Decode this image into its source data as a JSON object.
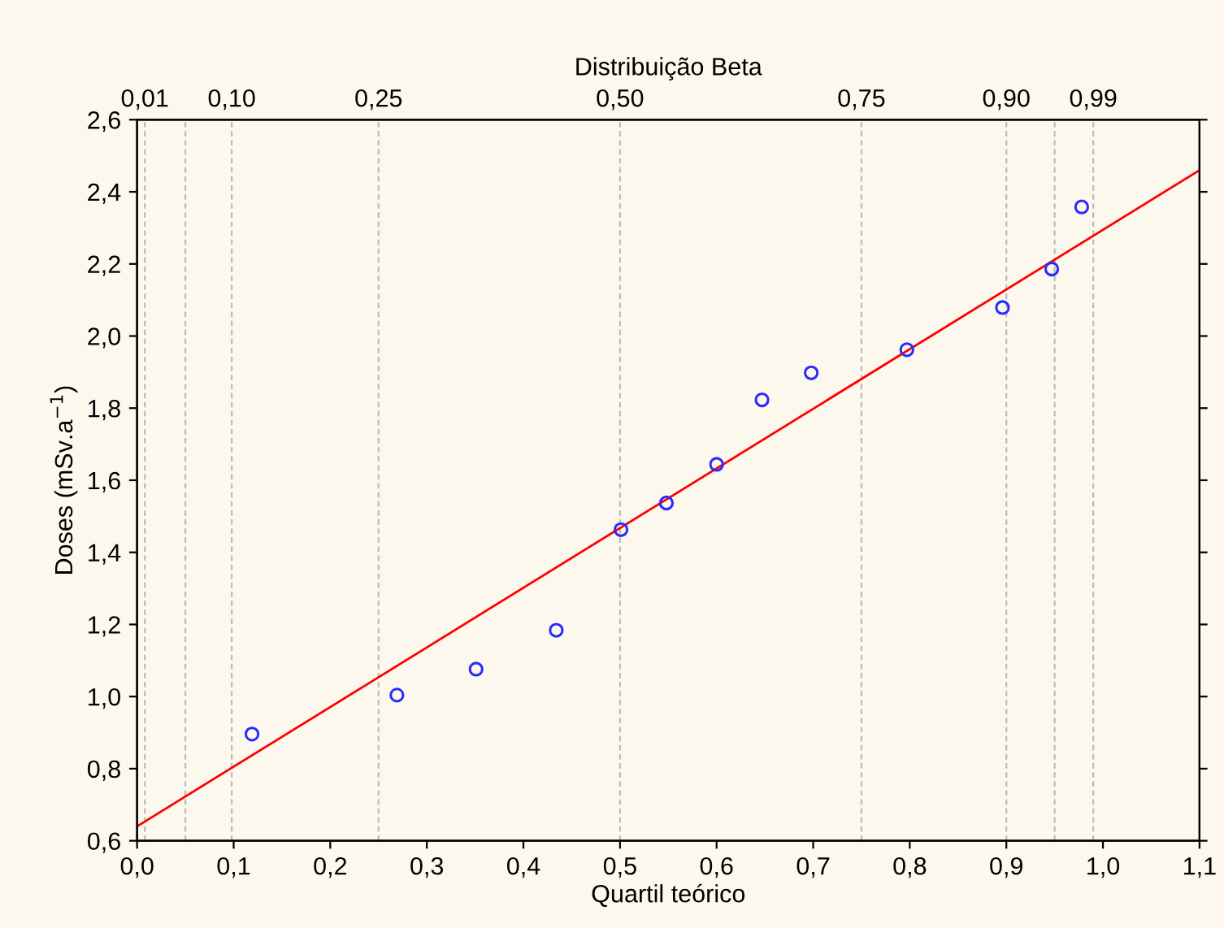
{
  "chart_data": {
    "type": "scatter",
    "x2label": "Distribuição Beta",
    "xlabel": "Quartil teórico",
    "ylabel": "Doses (mSv.a$^{−1}$)",
    "series": [
      {
        "color": "#2b2bff",
        "marker": "circle",
        "x": [
          0.119,
          0.269,
          0.351,
          0.434,
          0.501,
          0.548,
          0.6,
          0.647,
          0.698,
          0.797,
          0.896,
          0.947,
          0.978
        ],
        "values": [
          0.896,
          1.004,
          1.076,
          1.184,
          1.463,
          1.537,
          1.644,
          1.823,
          1.898,
          1.962,
          2.079,
          2.186,
          2.358
        ]
      },
      {
        "type": "line",
        "color": "#ff0000",
        "marker": "none",
        "line_style": "solid",
        "x": [
          0.0,
          1.1
        ],
        "values": [
          0.64,
          2.46
        ]
      }
    ],
    "xlim": [
      0.0,
      1.1
    ],
    "xticks": [
      {
        "value": 0.0,
        "label": "0,0"
      },
      {
        "value": 0.1,
        "label": "0,1"
      },
      {
        "value": 0.2,
        "label": "0,2"
      },
      {
        "value": 0.3,
        "label": "0,3"
      },
      {
        "value": 0.4,
        "label": "0,4"
      },
      {
        "value": 0.5,
        "label": "0,5"
      },
      {
        "value": 0.6,
        "label": "0,6"
      },
      {
        "value": 0.7,
        "label": "0,7"
      },
      {
        "value": 0.8,
        "label": "0,8"
      },
      {
        "value": 0.9,
        "label": "0,9"
      },
      {
        "value": 1.0,
        "label": "1,0"
      },
      {
        "value": 1.1,
        "label": "1,1"
      }
    ],
    "x2lim": [
      0.0,
      1.1
    ],
    "x2ticks": [
      {
        "value": 0.008,
        "label": "0,01"
      },
      {
        "value": 0.05,
        "label": null
      },
      {
        "value": 0.098,
        "label": "0,10"
      },
      {
        "value": 0.25,
        "label": "0,25"
      },
      {
        "value": 0.5,
        "label": "0,50"
      },
      {
        "value": 0.75,
        "label": "0,75"
      },
      {
        "value": 0.9,
        "label": "0,90"
      },
      {
        "value": 0.95,
        "label": null
      },
      {
        "value": 0.99,
        "label": "0,99"
      }
    ],
    "ylim": [
      0.6,
      2.6
    ],
    "yticks": [
      {
        "value": 0.6,
        "label": "0,6"
      },
      {
        "value": 0.8,
        "label": "0,8"
      },
      {
        "value": 1.0,
        "label": "1,0"
      },
      {
        "value": 1.2,
        "label": "1,2"
      },
      {
        "value": 1.4,
        "label": "1,4"
      },
      {
        "value": 1.6,
        "label": "1,6"
      },
      {
        "value": 1.8,
        "label": "1,8"
      },
      {
        "value": 2.0,
        "label": "2,0"
      },
      {
        "value": 2.2,
        "label": "2,2"
      },
      {
        "value": 2.4,
        "label": "2,4"
      },
      {
        "value": 2.6,
        "label": "2,6"
      }
    ],
    "grid": "x2",
    "legend": false
  }
}
